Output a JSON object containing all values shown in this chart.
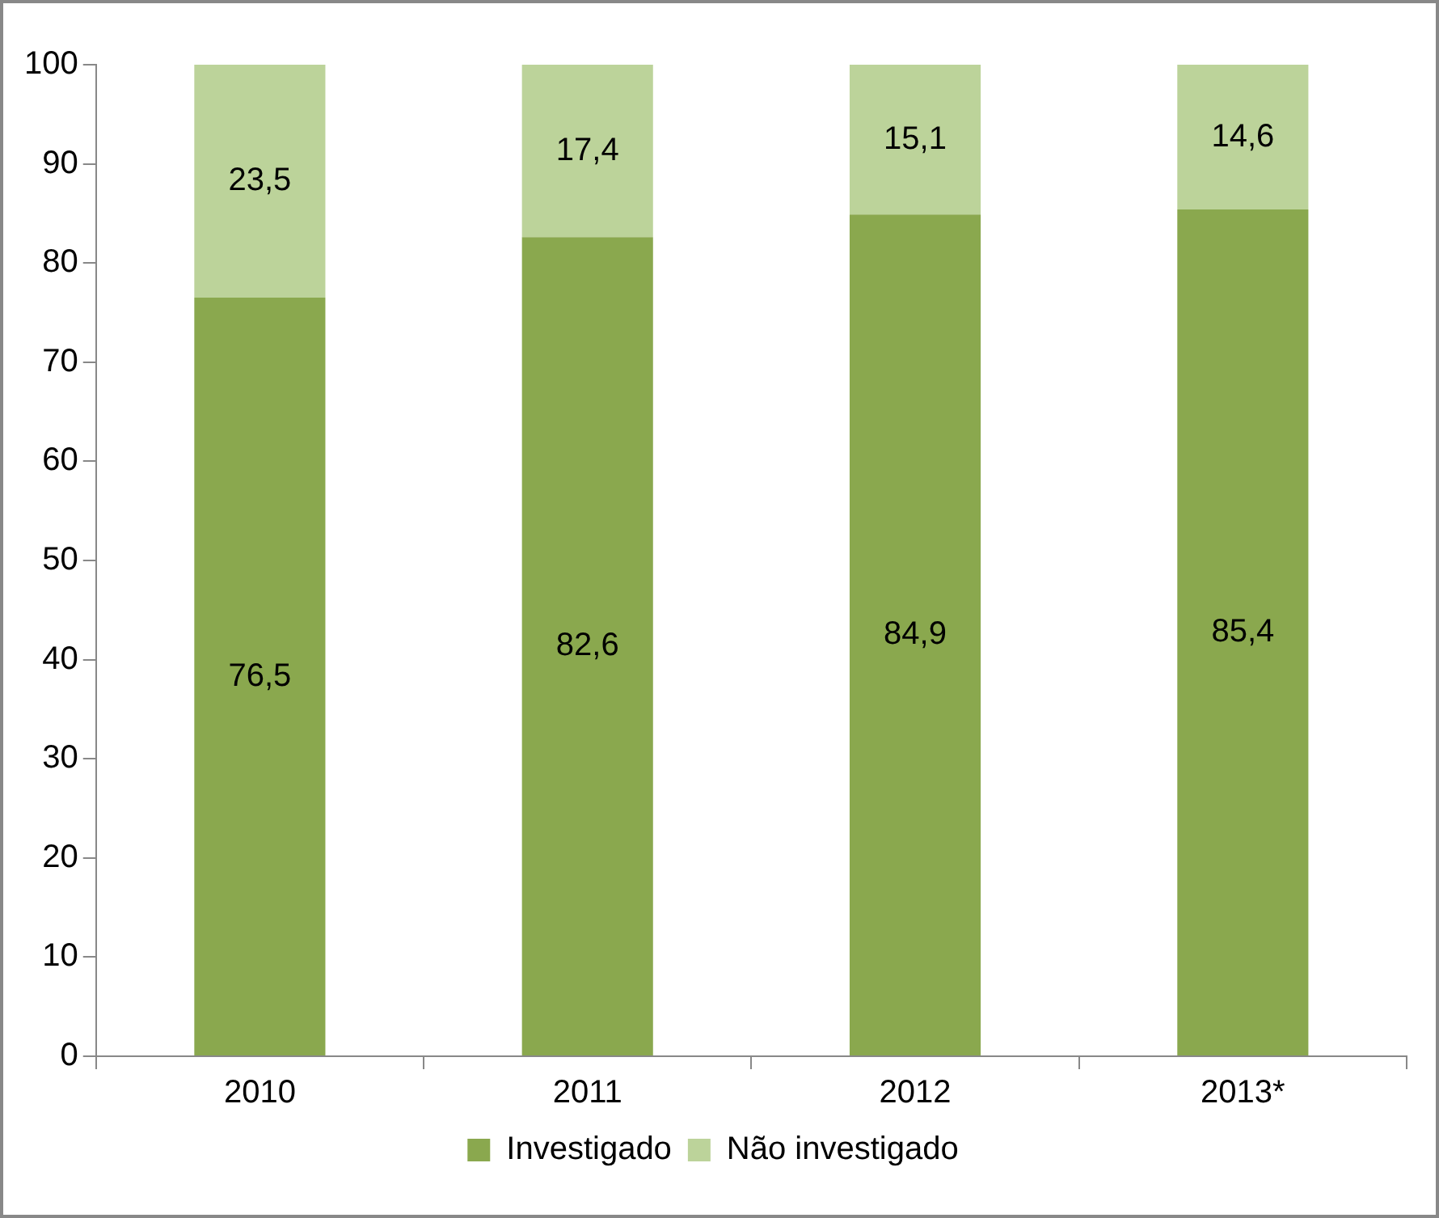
{
  "chart_data": {
    "type": "bar",
    "stacked": true,
    "categories": [
      "2010",
      "2011",
      "2012",
      "2013*"
    ],
    "series": [
      {
        "name": "Investigado",
        "color": "#8aa84e",
        "values": [
          76.5,
          82.6,
          84.9,
          85.4
        ],
        "value_labels": [
          "76,5",
          "82,6",
          "84,9",
          "85,4"
        ]
      },
      {
        "name": "Não investigado",
        "color": "#bcd39a",
        "values": [
          23.5,
          17.4,
          15.1,
          14.6
        ],
        "value_labels": [
          "23,5",
          "17,4",
          "15,1",
          "14,6"
        ]
      }
    ],
    "ylim": [
      0,
      100
    ],
    "yticks": [
      0,
      10,
      20,
      30,
      40,
      50,
      60,
      70,
      80,
      90,
      100
    ],
    "grid": false,
    "legend": "bottom"
  }
}
